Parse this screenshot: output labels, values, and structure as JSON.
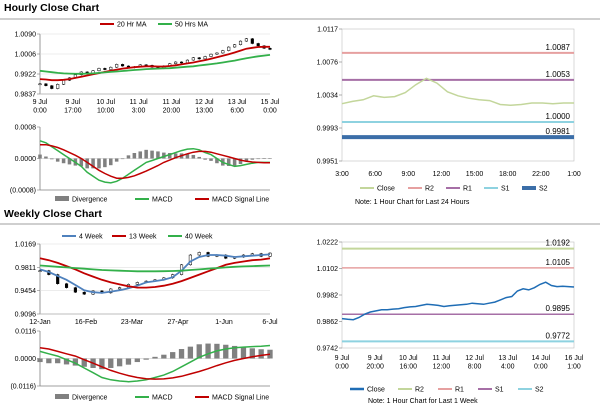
{
  "sections": {
    "hourly_title": "Hourly Close Chart",
    "weekly_title": "Weekly Close Chart"
  },
  "colors": {
    "ma_red": "#c00000",
    "ma_green": "#33b04a",
    "ma_blue": "#4f81bd",
    "close": "#c3d69b",
    "r2": "#e6a0a0",
    "r1": "#a66fa6",
    "s1": "#8ed2e0",
    "s2": "#3b6ea8",
    "weekly_close": "#1f6db5",
    "div_bar": "#808080",
    "grid": "#d9d9d9"
  },
  "chart_data": [
    {
      "id": "hourly_price",
      "type": "candlestick",
      "legend": [
        "20 Hr MA",
        "50 Hrs MA"
      ],
      "x_ticks": [
        "9 Jul\n0:00",
        "9 Jul\n17:00",
        "10 Jul\n10:00",
        "11 Jul\n3:00",
        "11 Jul\n20:00",
        "12 Jul\n13:00",
        "13 Jul\n6:00",
        "15 Jul\n0:00"
      ],
      "y_ticks": [
        "1.0090",
        "1.0006",
        "0.9922",
        "0.9837"
      ],
      "ylim": [
        0.9837,
        1.009
      ],
      "closes": [
        0.988,
        0.9872,
        0.986,
        0.9878,
        0.9895,
        0.9905,
        0.9918,
        0.993,
        0.9925,
        0.9935,
        0.9945,
        0.994,
        0.995,
        0.9962,
        0.9955,
        0.9948,
        0.9952,
        0.996,
        0.9958,
        0.995,
        0.9945,
        0.9955,
        0.9965,
        0.9972,
        0.9968,
        0.998,
        0.999,
        0.9985,
        0.9995,
        1.0005,
        1.001,
        1.002,
        1.0035,
        1.0045,
        1.006,
        1.007,
        1.005,
        1.004,
        1.003,
        1.0025
      ],
      "ma20": [
        0.99,
        0.9898,
        0.9895,
        0.9895,
        0.9897,
        0.99,
        0.9905,
        0.991,
        0.9915,
        0.992,
        0.9925,
        0.993,
        0.9935,
        0.994,
        0.9944,
        0.9947,
        0.995,
        0.9952,
        0.9954,
        0.9954,
        0.9953,
        0.9953,
        0.9955,
        0.9958,
        0.9962,
        0.9966,
        0.997,
        0.9975,
        0.998,
        0.9986,
        0.9992,
        0.9998,
        1.0005,
        1.0012,
        1.002,
        1.0028,
        1.0032,
        1.0035,
        1.0036,
        1.0036
      ],
      "ma50": [
        0.9935,
        0.9932,
        0.9929,
        0.9926,
        0.9924,
        0.9923,
        0.9922,
        0.9922,
        0.9923,
        0.9924,
        0.9926,
        0.9928,
        0.993,
        0.9932,
        0.9934,
        0.9936,
        0.9938,
        0.994,
        0.9942,
        0.9943,
        0.9944,
        0.9945,
        0.9946,
        0.9948,
        0.995,
        0.9952,
        0.9954,
        0.9957,
        0.996,
        0.9963,
        0.9966,
        0.997,
        0.9974,
        0.9978,
        0.9983,
        0.9988,
        0.9992,
        0.9996,
        0.9999,
        1.0002
      ]
    },
    {
      "id": "hourly_macd",
      "type": "macd",
      "y_ticks": [
        "0.0008",
        "0.0000",
        "(0.0008)"
      ],
      "ylim": [
        -0.0008,
        0.0008
      ],
      "legend": [
        "Divergence",
        "MACD",
        "MACD Signal Line"
      ],
      "macd": [
        0.00045,
        0.0004,
        0.0003,
        0.0002,
        0.0001,
        0.0,
        -0.0001,
        -0.0002,
        -0.00035,
        -0.00045,
        -0.00055,
        -0.0006,
        -0.00062,
        -0.00058,
        -0.0005,
        -0.0004,
        -0.0003,
        -0.0002,
        -0.0001,
        -5e-05,
        0.0,
        5e-05,
        0.0001,
        0.00015,
        0.0002,
        0.00024,
        0.00025,
        0.00022,
        0.00015,
        0.0001,
        0.0,
        -0.0001,
        -0.00015,
        -0.0002,
        -0.00018,
        -0.00015,
        -0.00012,
        -0.0001,
        -0.0001,
        -0.0001
      ],
      "signal": [
        0.00035,
        0.00035,
        0.00032,
        0.00028,
        0.00022,
        0.00015,
        8e-05,
        0.0,
        -0.0001,
        -0.0002,
        -0.0003,
        -0.00038,
        -0.00045,
        -0.0005,
        -0.0005,
        -0.00048,
        -0.00044,
        -0.00038,
        -0.00032,
        -0.00025,
        -0.00018,
        -0.0001,
        -4e-05,
        2e-05,
        7e-05,
        0.00012,
        0.00016,
        0.00018,
        0.00018,
        0.00016,
        0.00012,
        8e-05,
        4e-05,
        0.0,
        -4e-05,
        -7e-05,
        -9e-05,
        -0.0001,
        -0.00011,
        -0.00011
      ],
      "divergence": [
        0.0001,
        5e-05,
        -2e-05,
        -8e-05,
        -0.00012,
        -0.00015,
        -0.00018,
        -0.0002,
        -0.00025,
        -0.00025,
        -0.00025,
        -0.00022,
        -0.00017,
        -8e-05,
        0.0,
        8e-05,
        0.00014,
        0.00018,
        0.00022,
        0.0002,
        0.00018,
        0.00015,
        0.00014,
        0.00013,
        0.00013,
        0.00012,
        9e-05,
        4e-05,
        -3e-05,
        -6e-05,
        -0.00012,
        -0.00018,
        -0.00019,
        -0.0002,
        -0.00014,
        -8e-05,
        -3e-05,
        0.0,
        1e-05,
        1e-05
      ]
    },
    {
      "id": "hourly_pivot",
      "type": "line",
      "x_ticks": [
        "3:00",
        "6:00",
        "9:00",
        "12:00",
        "15:00",
        "18:00",
        "22:00",
        "1:00"
      ],
      "y_ticks": [
        "1.0117",
        "1.0076",
        "1.0034",
        "0.9993",
        "0.9951"
      ],
      "ylim": [
        0.9951,
        1.0117
      ],
      "close": [
        1.0023,
        1.0026,
        1.0028,
        1.0033,
        1.0031,
        1.0032,
        1.0037,
        1.0047,
        1.0055,
        1.0049,
        1.0038,
        1.0033,
        1.003,
        1.0028,
        1.0027,
        1.0022,
        1.0021,
        1.0022,
        1.0024,
        1.0024,
        1.0023,
        1.0024,
        1.0024
      ],
      "levels": [
        {
          "name": "R2",
          "value": 1.0087,
          "label": "1.0087",
          "color": "#e6a0a0",
          "width": 2
        },
        {
          "name": "R1",
          "value": 1.0053,
          "label": "1.0053",
          "color": "#a66fa6",
          "width": 2
        },
        {
          "name": "S1",
          "value": 1.0,
          "label": "1.0000",
          "color": "#8ed2e0",
          "width": 2
        },
        {
          "name": "S2",
          "value": 0.9981,
          "label": "0.9981",
          "color": "#3b6ea8",
          "width": 4
        }
      ],
      "legend": [
        "Close",
        "R2",
        "R1",
        "S1",
        "S2"
      ],
      "note": "Note: 1 Hour Chart for Last 24 Hours"
    },
    {
      "id": "weekly_price",
      "type": "candlestick",
      "legend": [
        "4 Week",
        "13 Week",
        "40 Week"
      ],
      "x_ticks": [
        "12-Jan",
        "16-Feb",
        "23-Mar",
        "27-Apr",
        "1-Jun",
        "6-Jul"
      ],
      "y_ticks": [
        "1.0169",
        "0.9811",
        "0.9454",
        "0.9096"
      ],
      "ylim": [
        0.9096,
        1.0169
      ],
      "closes": [
        0.976,
        0.97,
        0.956,
        0.95,
        0.943,
        0.94,
        0.945,
        0.942,
        0.948,
        0.95,
        0.955,
        0.958,
        0.96,
        0.962,
        0.965,
        0.97,
        0.985,
        1.0,
        1.004,
        0.998,
        1.0,
        0.995,
        0.997,
        1.0,
        1.002,
        0.998,
        1.003
      ],
      "ma4": [
        0.978,
        0.974,
        0.968,
        0.962,
        0.954,
        0.946,
        0.943,
        0.942,
        0.944,
        0.946,
        0.949,
        0.953,
        0.958,
        0.96,
        0.962,
        0.966,
        0.976,
        0.99,
        0.997,
        1.0,
        1.0,
        0.999,
        0.997,
        0.998,
        0.999,
        1.0,
        1.001
      ],
      "ma13": [
        0.995,
        0.992,
        0.988,
        0.983,
        0.978,
        0.972,
        0.967,
        0.962,
        0.958,
        0.955,
        0.952,
        0.95,
        0.95,
        0.951,
        0.953,
        0.956,
        0.96,
        0.965,
        0.97,
        0.975,
        0.98,
        0.985,
        0.988,
        0.99,
        0.992,
        0.993,
        0.995
      ],
      "ma40": [
        0.984,
        0.983,
        0.982,
        0.981,
        0.98,
        0.979,
        0.978,
        0.977,
        0.9765,
        0.976,
        0.9755,
        0.975,
        0.975,
        0.975,
        0.9752,
        0.9755,
        0.976,
        0.977,
        0.978,
        0.979,
        0.98,
        0.981,
        0.982,
        0.9825,
        0.983,
        0.9835,
        0.984
      ]
    },
    {
      "id": "weekly_macd",
      "type": "macd",
      "y_ticks": [
        "0.0116",
        "0.0000",
        "(0.0116)"
      ],
      "ylim": [
        -0.0116,
        0.0116
      ],
      "legend": [
        "Divergence",
        "MACD",
        "MACD Signal Line"
      ],
      "macd": [
        0.003,
        0.002,
        0.001,
        -0.0005,
        -0.002,
        -0.004,
        -0.006,
        -0.008,
        -0.009,
        -0.0095,
        -0.0098,
        -0.0095,
        -0.009,
        -0.008,
        -0.007,
        -0.0055,
        -0.0035,
        -0.0015,
        0.0005,
        0.002,
        0.0032,
        0.004,
        0.0045,
        0.0048,
        0.005,
        0.0052,
        0.0055
      ],
      "signal": [
        0.0045,
        0.004,
        0.003,
        0.002,
        0.001,
        -0.0005,
        -0.002,
        -0.0035,
        -0.005,
        -0.0062,
        -0.0072,
        -0.008,
        -0.0085,
        -0.0087,
        -0.0086,
        -0.0082,
        -0.0075,
        -0.0065,
        -0.0055,
        -0.0043,
        -0.003,
        -0.0018,
        -0.0008,
        0.0,
        0.0007,
        0.0013,
        0.0018
      ],
      "divergence": [
        -0.0015,
        -0.002,
        -0.002,
        -0.0025,
        -0.003,
        -0.0035,
        -0.004,
        -0.0045,
        -0.004,
        -0.0033,
        -0.0026,
        -0.0015,
        -0.0005,
        0.0007,
        0.0016,
        0.0027,
        0.004,
        0.005,
        0.006,
        0.0063,
        0.0062,
        0.0058,
        0.0053,
        0.0048,
        0.0043,
        0.0039,
        0.0037
      ]
    },
    {
      "id": "weekly_pivot",
      "type": "line",
      "x_ticks": [
        "9 Jul\n0:00",
        "9 Jul\n20:00",
        "10 Jul\n16:00",
        "11 Jul\n12:00",
        "12 Jul\n8:00",
        "13 Jul\n4:00",
        "14 Jul\n0:00",
        "16 Jul\n1:00"
      ],
      "y_ticks": [
        "1.0222",
        "1.0102",
        "0.9982",
        "0.9862",
        "0.9742"
      ],
      "ylim": [
        0.9742,
        1.0222
      ],
      "close": [
        0.9875,
        0.9872,
        0.987,
        0.988,
        0.9895,
        0.9905,
        0.991,
        0.9915,
        0.9915,
        0.9918,
        0.992,
        0.9925,
        0.9928,
        0.993,
        0.9935,
        0.994,
        0.9938,
        0.9935,
        0.993,
        0.9933,
        0.9936,
        0.9938,
        0.994,
        0.9945,
        0.9942,
        0.994,
        0.9945,
        0.995,
        0.996,
        0.997,
        0.9975,
        1.0,
        1.001,
        1.0005,
        1.0015,
        1.003,
        1.004,
        1.0025,
        1.002,
        1.0022,
        1.002,
        1.0018
      ],
      "levels": [
        {
          "name": "R2",
          "value": 1.0192,
          "label": "1.0192",
          "color": "#c3d69b",
          "width": 2
        },
        {
          "name": "R1",
          "value": 1.0105,
          "label": "1.0105",
          "color": "#e6a0a0",
          "width": 1.5
        },
        {
          "name": "S1",
          "value": 0.9895,
          "label": "0.9895",
          "color": "#a66fa6",
          "width": 1.5
        },
        {
          "name": "S2",
          "value": 0.9772,
          "label": "0.9772",
          "color": "#8ed2e0",
          "width": 2
        }
      ],
      "legend": [
        "Close",
        "R2",
        "R1",
        "S1",
        "S2"
      ],
      "note": "Note: 1 Hour Chart for Last 1 Week"
    }
  ]
}
